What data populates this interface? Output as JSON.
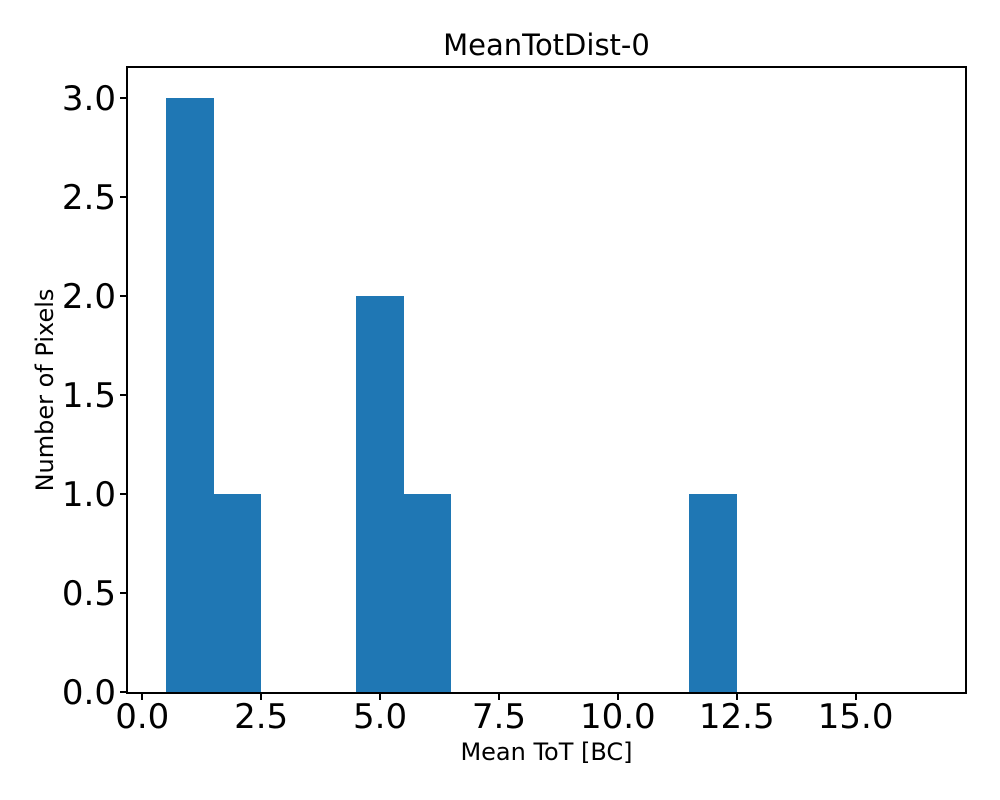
{
  "chart_data": {
    "type": "bar",
    "subtype": "histogram",
    "title": "MeanTotDist-0",
    "xlabel": "Mean ToT [BC]",
    "ylabel": "Number of Pixels",
    "bar_color": "#1f77b4",
    "axis_color": "#000000",
    "background_color": "#ffffff",
    "grid": false,
    "legend": false,
    "xlim": [
      -0.3,
      17.3
    ],
    "ylim": [
      0,
      3.15
    ],
    "xticks": [
      {
        "value": 0.0,
        "label": "0.0"
      },
      {
        "value": 2.5,
        "label": "2.5"
      },
      {
        "value": 5.0,
        "label": "5.0"
      },
      {
        "value": 7.5,
        "label": "7.5"
      },
      {
        "value": 10.0,
        "label": "10.0"
      },
      {
        "value": 12.5,
        "label": "12.5"
      },
      {
        "value": 15.0,
        "label": "15.0"
      }
    ],
    "yticks": [
      {
        "value": 0.0,
        "label": "0.0"
      },
      {
        "value": 0.5,
        "label": "0.5"
      },
      {
        "value": 1.0,
        "label": "1.0"
      },
      {
        "value": 1.5,
        "label": "1.5"
      },
      {
        "value": 2.0,
        "label": "2.0"
      },
      {
        "value": 2.5,
        "label": "2.5"
      },
      {
        "value": 3.0,
        "label": "3.0"
      }
    ],
    "bars": [
      {
        "x0": 0.5,
        "x1": 1.5,
        "count": 3
      },
      {
        "x0": 1.5,
        "x1": 2.5,
        "count": 1
      },
      {
        "x0": 4.5,
        "x1": 5.5,
        "count": 2
      },
      {
        "x0": 5.5,
        "x1": 6.5,
        "count": 1
      },
      {
        "x0": 11.5,
        "x1": 12.5,
        "count": 1
      }
    ]
  }
}
